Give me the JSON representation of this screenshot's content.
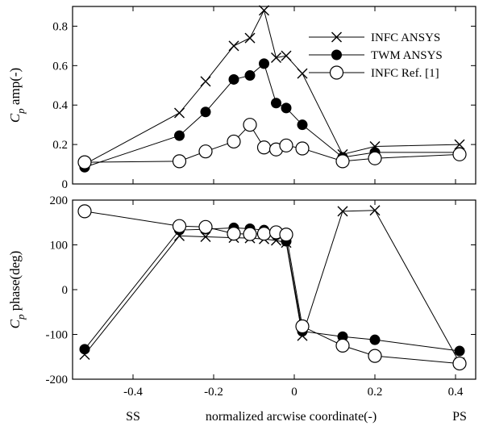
{
  "chart_data": [
    {
      "type": "line",
      "ylabel_main": "C",
      "ylabel_sub": "p",
      "ylabel_rest": " amp(-)",
      "xlim": [
        -0.55,
        0.45
      ],
      "ylim": [
        0,
        0.9
      ],
      "yticks": [
        "0",
        "0.2",
        "0.4",
        "0.6",
        "0.8"
      ],
      "ytick_values": [
        0,
        0.2,
        0.4,
        0.6,
        0.8
      ],
      "legend_position": "top-right",
      "series": [
        {
          "name": "INFC ANSYS",
          "marker": "x",
          "x": [
            -0.52,
            -0.285,
            -0.22,
            -0.15,
            -0.11,
            -0.075,
            -0.045,
            -0.02,
            0.02,
            0.12,
            0.2,
            0.41
          ],
          "y": [
            0.1,
            0.36,
            0.52,
            0.7,
            0.74,
            0.88,
            0.64,
            0.65,
            0.56,
            0.15,
            0.19,
            0.2
          ]
        },
        {
          "name": "TWM ANSYS",
          "marker": "filled-circle",
          "x": [
            -0.52,
            -0.285,
            -0.22,
            -0.15,
            -0.11,
            -0.075,
            -0.045,
            -0.02,
            0.02,
            0.12,
            0.2,
            0.41
          ],
          "y": [
            0.085,
            0.245,
            0.365,
            0.53,
            0.55,
            0.61,
            0.41,
            0.385,
            0.3,
            0.135,
            0.16,
            0.16
          ]
        },
        {
          "name": "INFC Ref. [1]",
          "marker": "open-circle",
          "x": [
            -0.52,
            -0.285,
            -0.22,
            -0.15,
            -0.11,
            -0.075,
            -0.045,
            -0.02,
            0.02,
            0.12,
            0.2,
            0.41
          ],
          "y": [
            0.11,
            0.115,
            0.165,
            0.215,
            0.3,
            0.185,
            0.175,
            0.195,
            0.18,
            0.115,
            0.13,
            0.15
          ]
        }
      ]
    },
    {
      "type": "line",
      "ylabel_main": "C",
      "ylabel_sub": "p",
      "ylabel_rest": " phase(deg)",
      "xlabel": "normalized arcwise coordinate(-)",
      "xlim": [
        -0.55,
        0.45
      ],
      "ylim": [
        -200,
        200
      ],
      "yticks": [
        "-200",
        "-100",
        "0",
        "100",
        "200"
      ],
      "ytick_values": [
        -200,
        -100,
        0,
        100,
        200
      ],
      "xticks": [
        "-0.4",
        "-0.2",
        "0",
        "0.2",
        "0.4"
      ],
      "xtick_values": [
        -0.4,
        -0.2,
        0,
        0.2,
        0.4
      ],
      "x_annotations": [
        {
          "text": "SS",
          "x": -0.4
        },
        {
          "text": "PS",
          "x": 0.41
        }
      ],
      "series": [
        {
          "name": "INFC ANSYS",
          "marker": "x",
          "x": [
            -0.52,
            -0.285,
            -0.22,
            -0.15,
            -0.11,
            -0.075,
            -0.045,
            -0.02,
            0.02,
            0.12,
            0.2,
            0.41
          ],
          "y": [
            -145,
            120,
            118,
            116,
            115,
            113,
            110,
            105,
            -103,
            175,
            177,
            -163
          ]
        },
        {
          "name": "TWM ANSYS",
          "marker": "filled-circle",
          "x": [
            -0.52,
            -0.285,
            -0.22,
            -0.15,
            -0.11,
            -0.075,
            -0.045,
            -0.02,
            0.02,
            0.12,
            0.2,
            0.41
          ],
          "y": [
            -133,
            133,
            135,
            138,
            136,
            133,
            122,
            108,
            -93,
            -105,
            -112,
            -137
          ]
        },
        {
          "name": "INFC Ref. [1]",
          "marker": "open-circle",
          "x": [
            -0.52,
            -0.285,
            -0.22,
            -0.15,
            -0.11,
            -0.075,
            -0.045,
            -0.02,
            0.02,
            0.12,
            0.2,
            0.41
          ],
          "y": [
            175,
            142,
            140,
            125,
            124,
            125,
            128,
            123,
            -82,
            -125,
            -148,
            -165
          ]
        }
      ]
    }
  ]
}
